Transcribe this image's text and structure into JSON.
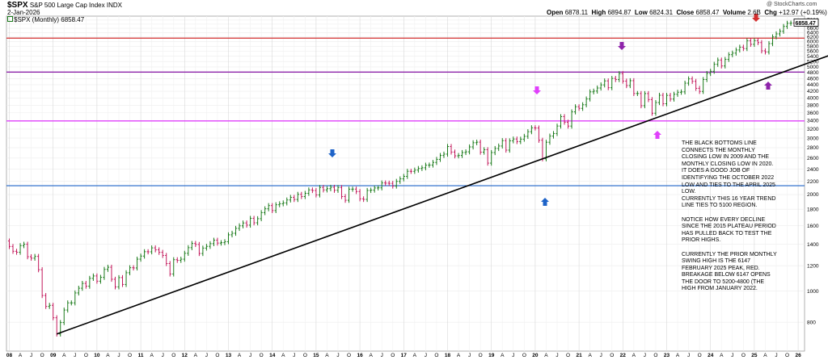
{
  "header": {
    "symbol": "$SPX",
    "name": "S&P 500 Large Cap Index",
    "exchange": "INDX",
    "date": "2-Jan-2026",
    "watermark": "@ StockCharts.com",
    "open_label": "Open",
    "open": "6878.11",
    "high_label": "High",
    "high": "6894.87",
    "low_label": "Low",
    "low": "6824.31",
    "close_label": "Close",
    "close": "6858.47",
    "volume_label": "Volume",
    "volume": "2.6B",
    "chg_label": "Chg",
    "chg": "+12.97 (+0.19%)",
    "legend": "$SPX (Monthly) 6858.47",
    "price_tag": "6858.47"
  },
  "colors": {
    "up": "#1a7a1a",
    "down": "#c2185b",
    "red_line": "#d32f2f",
    "purple_line": "#8e24aa",
    "magenta_line": "#e040fb",
    "blue_line": "#1e63c8",
    "trend_line": "#000000"
  },
  "annotation_text": "THE BLACK BOTTOMS LINE CONNECTS THE MONTHLY CLOSING LOW IN 2009 AND THE MONTHLY CLOSING LOW IN 2020.\nIT DOES A GOOD JOB OF IDENTIFYING THE OCTOBER 2022 LOW AND TIES TO THE APRIL 2025 LOW.\nCURRENTLY THIS 16 YEAR TREND LINE TIES TO 5100 REGION.\n\nNOTICE HOW EVERY DECLINE SINCE THE 2015 PLATEAU PERIOD HAS PULLED BACK TO TEST THE PRIOR HIGHS.\n\nCURRENTLY THE PRIOR MONTHLY SWING HIGH IS THE 6147 FEBRUARY 2025 PEAK, RED.\nBREAKAGE BELOW 6147 OPENS THE DOOR TO 5200-4800 (THE HIGH FROM JANUARY 2022.",
  "chart_data": {
    "type": "line",
    "scale": "log",
    "period": "monthly",
    "ylim": [
      650,
      7200
    ],
    "y_ticks": [
      "800",
      "1000",
      "1200",
      "1400",
      "1600",
      "1800",
      "2000",
      "2200",
      "2400",
      "2600",
      "2800",
      "3000",
      "3200",
      "3400",
      "3600",
      "3800",
      "4000",
      "4200",
      "4400",
      "4600",
      "4800",
      "5000",
      "5200",
      "5400",
      "5600",
      "5800",
      "6000",
      "6200",
      "6400",
      "6600",
      "6800",
      "7000"
    ],
    "x_ticks": [
      "08",
      "A",
      "J",
      "O",
      "09",
      "A",
      "J",
      "O",
      "10",
      "A",
      "J",
      "O",
      "11",
      "A",
      "J",
      "O",
      "12",
      "A",
      "J",
      "O",
      "13",
      "A",
      "J",
      "O",
      "14",
      "A",
      "J",
      "O",
      "15",
      "A",
      "J",
      "O",
      "16",
      "A",
      "J",
      "O",
      "17",
      "A",
      "J",
      "O",
      "18",
      "A",
      "J",
      "O",
      "19",
      "A",
      "J",
      "O",
      "20",
      "A",
      "J",
      "O",
      "21",
      "A",
      "J",
      "O",
      "22",
      "A",
      "J",
      "O",
      "23",
      "A",
      "J",
      "O",
      "24",
      "A",
      "J",
      "O",
      "25",
      "A",
      "J",
      "O",
      "26"
    ],
    "x_start": "2008-01",
    "closes": [
      1378,
      1331,
      1322,
      1386,
      1400,
      1280,
      1267,
      1283,
      1166,
      969,
      896,
      903,
      826,
      735,
      798,
      873,
      919,
      919,
      987,
      1021,
      1057,
      1036,
      1096,
      1115,
      1074,
      1104,
      1169,
      1187,
      1089,
      1031,
      1102,
      1049,
      1141,
      1183,
      1181,
      1258,
      1286,
      1327,
      1326,
      1364,
      1345,
      1321,
      1292,
      1219,
      1131,
      1253,
      1247,
      1258,
      1312,
      1366,
      1408,
      1398,
      1310,
      1362,
      1379,
      1406,
      1441,
      1412,
      1416,
      1426,
      1498,
      1515,
      1569,
      1598,
      1631,
      1606,
      1686,
      1633,
      1682,
      1757,
      1806,
      1848,
      1783,
      1859,
      1872,
      1884,
      1924,
      1960,
      1931,
      2003,
      1972,
      2018,
      2068,
      2059,
      1995,
      2105,
      2068,
      2086,
      2107,
      2063,
      2104,
      1972,
      1920,
      2079,
      2080,
      2044,
      1940,
      1932,
      2060,
      2065,
      2097,
      2099,
      2174,
      2171,
      2168,
      2126,
      2199,
      2239,
      2279,
      2364,
      2363,
      2384,
      2412,
      2424,
      2470,
      2472,
      2519,
      2575,
      2648,
      2674,
      2824,
      2714,
      2641,
      2648,
      2705,
      2718,
      2816,
      2902,
      2914,
      2712,
      2760,
      2507,
      2704,
      2784,
      2834,
      2946,
      2752,
      2942,
      2980,
      2926,
      2977,
      3038,
      3141,
      3231,
      3226,
      2954,
      2585,
      2912,
      3044,
      3100,
      3271,
      3500,
      3363,
      3270,
      3622,
      3756,
      3714,
      3811,
      3973,
      4181,
      4204,
      4298,
      4395,
      4523,
      4308,
      4605,
      4567,
      4766,
      4516,
      4374,
      4530,
      4132,
      4132,
      3785,
      4130,
      3955,
      3586,
      3872,
      4080,
      3840,
      4077,
      3970,
      4109,
      4169,
      4180,
      4450,
      4589,
      4508,
      4288,
      4194,
      4568,
      4770,
      4846,
      5096,
      5254,
      5036,
      5278,
      5460,
      5522,
      5648,
      5762,
      5705,
      6032,
      5882,
      6040,
      5955,
      5612,
      5569,
      5912,
      6205,
      6339,
      6460,
      6688,
      6840,
      6849,
      6812,
      6845,
      6858
    ]
  }
}
